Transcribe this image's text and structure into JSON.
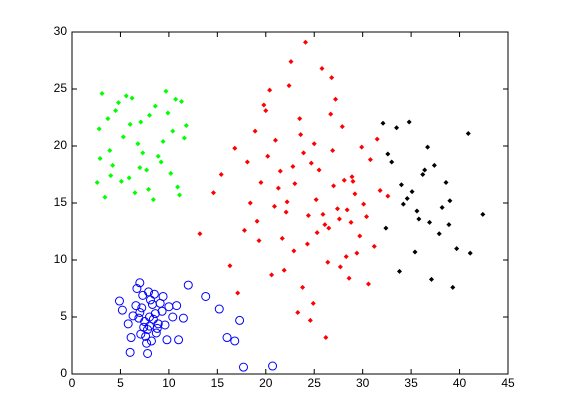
{
  "chart_data": {
    "type": "scatter",
    "xlim": [
      0,
      45
    ],
    "xticks": [
      0,
      5,
      10,
      15,
      20,
      25,
      30,
      35,
      40,
      45
    ],
    "ylim": [
      0,
      30
    ],
    "yticks": [
      0,
      5,
      10,
      15,
      20,
      25,
      30
    ],
    "grid": false,
    "series": [
      {
        "color": "#00ff00",
        "marker": "diamond",
        "x": [
          3.1,
          4.5,
          6.2,
          8.0,
          9.7,
          11.3,
          2.8,
          5.3,
          7.1,
          10.4,
          3.9,
          6.8,
          8.9,
          11.6,
          4.2,
          7.7,
          9.2,
          2.6,
          5.9,
          10.9,
          3.4,
          6.5,
          8.4,
          11.1,
          4.8,
          7.3,
          9.9,
          2.9,
          5.6,
          10.2,
          3.7,
          7.9,
          11.8,
          5.1,
          8.6,
          6.0,
          9.4,
          4.0,
          10.7,
          7.0
        ],
        "values": [
          24.6,
          23.1,
          24.2,
          22.7,
          24.8,
          23.9,
          21.5,
          20.8,
          22.1,
          21.3,
          19.6,
          20.2,
          19.1,
          20.7,
          18.3,
          17.9,
          18.6,
          16.8,
          17.2,
          16.4,
          15.5,
          15.9,
          15.3,
          15.7,
          23.8,
          19.4,
          22.9,
          18.9,
          24.4,
          17.6,
          22.4,
          16.2,
          21.8,
          16.9,
          23.5,
          21.9,
          20.4,
          17.4,
          24.1,
          18.1
        ]
      },
      {
        "color": "#ff0000",
        "marker": "diamond",
        "x": [
          25.2,
          22.8,
          27.6,
          19.5,
          30.1,
          24.3,
          21.0,
          28.9,
          26.4,
          17.8,
          23.5,
          29.7,
          20.6,
          26.9,
          31.8,
          18.9,
          24.9,
          27.2,
          22.1,
          15.4,
          28.3,
          25.8,
          21.7,
          30.8,
          23.0,
          19.1,
          27.9,
          24.6,
          16.3,
          29.2,
          22.4,
          26.1,
          20.2,
          28.6,
          25.5,
          23.8,
          31.2,
          18.4,
          26.7,
          21.3,
          29.9,
          24.1,
          13.2,
          27.4,
          22.9,
          19.8,
          30.4,
          25.0,
          17.1,
          28.1,
          23.3,
          26.5,
          20.9,
          32.6,
          24.7,
          21.9,
          29.4,
          16.8,
          27.0,
          22.6,
          25.9,
          19.3,
          28.8,
          23.6,
          31.5,
          14.6,
          26.2,
          20.4,
          24.4,
          29.0,
          21.5,
          27.7,
          18.1,
          25.3,
          30.6,
          22.2,
          26.8,
          23.9,
          20.0,
          28.4
        ],
        "values": [
          15.3,
          18.2,
          13.6,
          16.8,
          14.9,
          11.4,
          20.5,
          17.3,
          9.8,
          12.6,
          22.4,
          12.1,
          8.7,
          19.6,
          16.1,
          21.3,
          6.2,
          24.1,
          14.2,
          17.5,
          10.3,
          26.8,
          11.9,
          18.8,
          16.7,
          13.4,
          21.7,
          4.7,
          9.5,
          15.8,
          25.3,
          13.1,
          19.1,
          8.4,
          17.9,
          7.6,
          11.2,
          15.0,
          22.8,
          16.3,
          19.9,
          29.1,
          12.3,
          14.5,
          10.8,
          23.6,
          13.8,
          20.2,
          7.1,
          17.0,
          5.4,
          12.8,
          14.7,
          15.6,
          18.5,
          9.1,
          10.6,
          19.8,
          16.5,
          27.4,
          14.0,
          11.7,
          13.3,
          21.0,
          20.6,
          15.9,
          3.2,
          24.9,
          13.9,
          16.9,
          17.8,
          9.4,
          18.6,
          12.4,
          7.9,
          15.1,
          26.0,
          19.4,
          23.1,
          14.4
        ]
      },
      {
        "color": "#000000",
        "marker": "diamond",
        "x": [
          32.1,
          33.5,
          34.8,
          36.2,
          37.4,
          38.6,
          40.9,
          42.4,
          33.0,
          35.1,
          36.9,
          39.0,
          34.2,
          35.8,
          37.9,
          39.7,
          32.6,
          34.6,
          36.4,
          38.2,
          33.8,
          35.4,
          37.1,
          39.3,
          41.1,
          32.4,
          34.0,
          36.7,
          38.9,
          35.6
        ],
        "values": [
          22.0,
          21.6,
          22.1,
          17.5,
          18.3,
          16.8,
          21.1,
          14.0,
          18.6,
          16.0,
          13.3,
          15.2,
          14.9,
          13.6,
          12.3,
          11.0,
          19.3,
          15.4,
          17.9,
          14.6,
          9.0,
          10.7,
          8.3,
          7.6,
          10.6,
          12.8,
          16.6,
          19.9,
          13.1,
          14.3
        ]
      },
      {
        "color": "#0000ff",
        "marker": "circle",
        "x": [
          8.0,
          7.5,
          8.6,
          7.2,
          8.9,
          7.8,
          8.3,
          6.9,
          9.3,
          7.4,
          8.1,
          8.7,
          7.0,
          9.1,
          7.6,
          8.4,
          6.6,
          9.6,
          7.9,
          8.2,
          6.3,
          10.0,
          7.3,
          8.8,
          5.8,
          10.4,
          7.7,
          8.5,
          6.1,
          9.8,
          5.2,
          10.8,
          8.0,
          7.1,
          9.4,
          6.7,
          11.5,
          12.0,
          13.8,
          15.2,
          16.0,
          16.8,
          17.3,
          17.7,
          20.7,
          7.0,
          6.0,
          7.8,
          4.9,
          11.0
        ],
        "values": [
          5.0,
          4.6,
          5.3,
          5.8,
          4.4,
          3.9,
          6.1,
          4.9,
          5.5,
          4.1,
          6.5,
          3.6,
          5.4,
          6.2,
          3.3,
          4.8,
          6.0,
          4.3,
          7.2,
          2.9,
          5.1,
          5.9,
          6.9,
          4.0,
          4.4,
          5.0,
          2.7,
          7.0,
          3.2,
          3.0,
          5.6,
          6.0,
          4.2,
          3.5,
          6.8,
          7.5,
          4.9,
          7.8,
          6.8,
          5.7,
          3.2,
          2.9,
          4.7,
          0.6,
          0.7,
          8.0,
          1.9,
          1.8,
          6.4,
          3.0
        ]
      }
    ]
  }
}
